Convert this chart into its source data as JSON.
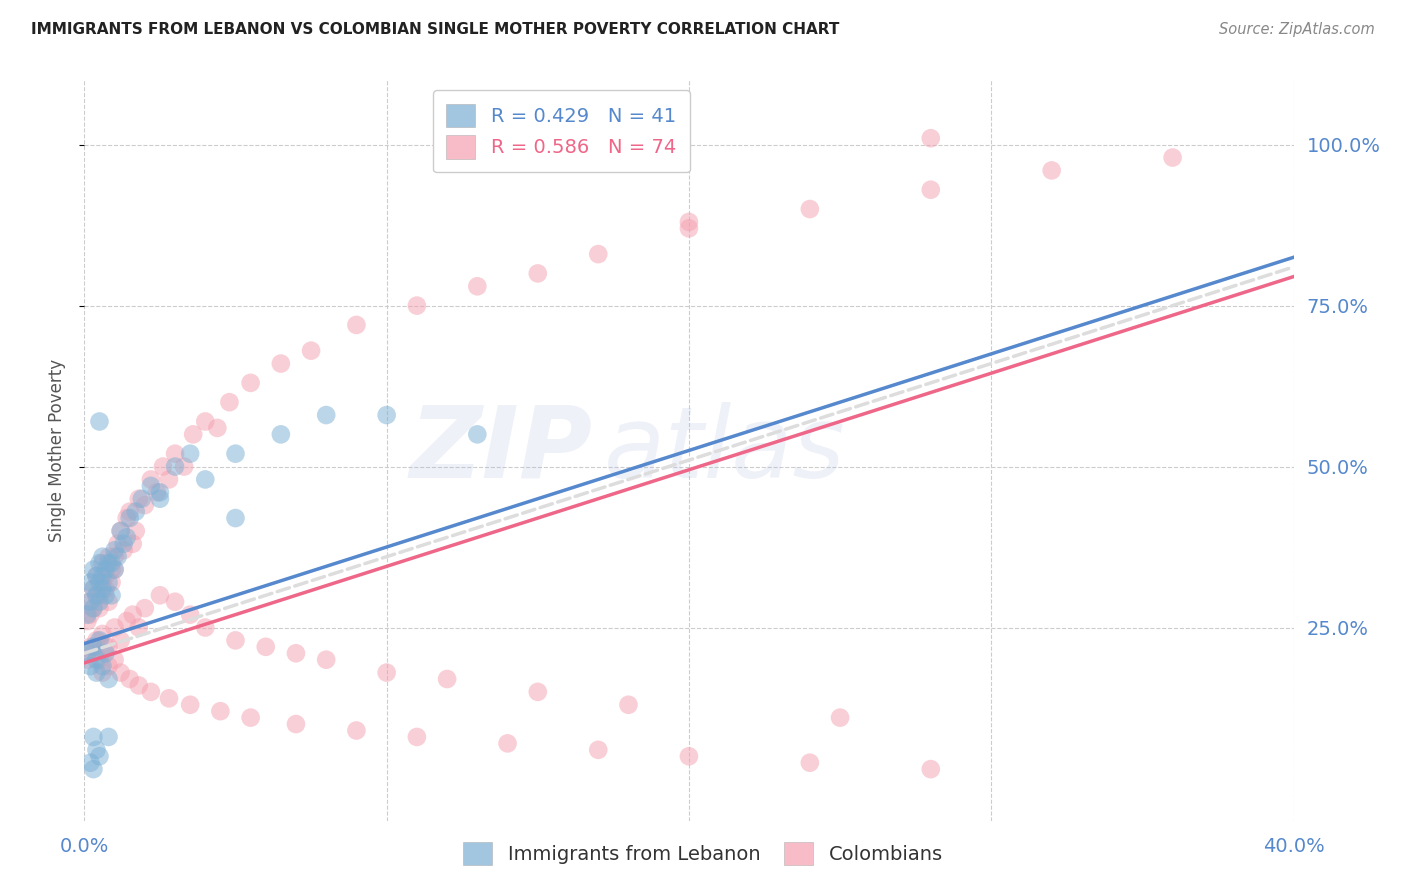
{
  "title": "IMMIGRANTS FROM LEBANON VS COLOMBIAN SINGLE MOTHER POVERTY CORRELATION CHART",
  "source": "Source: ZipAtlas.com",
  "ylabel": "Single Mother Poverty",
  "ytick_labels": [
    "100.0%",
    "75.0%",
    "50.0%",
    "25.0%"
  ],
  "ytick_values": [
    1.0,
    0.75,
    0.5,
    0.25
  ],
  "xlim": [
    0.0,
    0.4
  ],
  "ylim": [
    -0.05,
    1.1
  ],
  "legend1_label": "R = 0.429   N = 41",
  "legend2_label": "R = 0.586   N = 74",
  "color_blue": "#7BAFD4",
  "color_pink": "#F4A0B0",
  "color_blue_line": "#5588CC",
  "color_pink_line": "#EE6688",
  "color_dashed": "#DDDDDD",
  "watermark_zip": "ZIP",
  "watermark_atlas": "atlas",
  "title_color": "#222222",
  "axis_label_color": "#5588CC",
  "legend_r_color_blue": "#5588CC",
  "legend_r_color_pink": "#EE6688",
  "blue_line_x0": 0.0,
  "blue_line_y0": 0.225,
  "blue_line_x1": 0.4,
  "blue_line_y1": 0.825,
  "pink_line_x0": 0.0,
  "pink_line_y0": 0.195,
  "pink_line_x1": 0.4,
  "pink_line_y1": 0.795,
  "blue_x": [
    0.001,
    0.002,
    0.002,
    0.003,
    0.003,
    0.003,
    0.004,
    0.004,
    0.005,
    0.005,
    0.005,
    0.006,
    0.006,
    0.006,
    0.007,
    0.007,
    0.008,
    0.008,
    0.009,
    0.009,
    0.01,
    0.01,
    0.011,
    0.012,
    0.013,
    0.014,
    0.015,
    0.017,
    0.019,
    0.022,
    0.025,
    0.03,
    0.035,
    0.04,
    0.05,
    0.065,
    0.08,
    0.1,
    0.13,
    0.005,
    0.008
  ],
  "blue_y": [
    0.27,
    0.32,
    0.29,
    0.34,
    0.31,
    0.28,
    0.3,
    0.33,
    0.35,
    0.32,
    0.29,
    0.33,
    0.31,
    0.36,
    0.3,
    0.34,
    0.35,
    0.32,
    0.3,
    0.35,
    0.34,
    0.37,
    0.36,
    0.4,
    0.38,
    0.39,
    0.42,
    0.43,
    0.45,
    0.47,
    0.46,
    0.5,
    0.52,
    0.48,
    0.52,
    0.55,
    0.58,
    0.58,
    0.55,
    0.57,
    0.08
  ],
  "blue_x2": [
    0.001,
    0.002,
    0.003,
    0.004,
    0.004,
    0.005,
    0.006,
    0.007,
    0.008,
    0.003,
    0.004,
    0.005,
    0.002,
    0.003,
    0.025,
    0.05
  ],
  "blue_y2": [
    0.21,
    0.19,
    0.22,
    0.2,
    0.18,
    0.23,
    0.19,
    0.21,
    0.17,
    0.08,
    0.06,
    0.05,
    0.04,
    0.03,
    0.45,
    0.42
  ],
  "pink_x": [
    0.001,
    0.002,
    0.002,
    0.003,
    0.003,
    0.004,
    0.004,
    0.005,
    0.005,
    0.006,
    0.006,
    0.007,
    0.007,
    0.008,
    0.008,
    0.009,
    0.009,
    0.01,
    0.01,
    0.011,
    0.012,
    0.013,
    0.014,
    0.015,
    0.016,
    0.017,
    0.018,
    0.02,
    0.022,
    0.024,
    0.026,
    0.028,
    0.03,
    0.033,
    0.036,
    0.04,
    0.044,
    0.048,
    0.055,
    0.065,
    0.075,
    0.09,
    0.11,
    0.13,
    0.15,
    0.17,
    0.2,
    0.24,
    0.28,
    0.32,
    0.36,
    0.28,
    0.2,
    0.006,
    0.008,
    0.01,
    0.012,
    0.014,
    0.016,
    0.018,
    0.02,
    0.025,
    0.03,
    0.035,
    0.04,
    0.05,
    0.06,
    0.07,
    0.08,
    0.1,
    0.12,
    0.15,
    0.18,
    0.25
  ],
  "pink_y": [
    0.26,
    0.29,
    0.27,
    0.31,
    0.28,
    0.3,
    0.33,
    0.3,
    0.28,
    0.32,
    0.35,
    0.31,
    0.33,
    0.36,
    0.29,
    0.34,
    0.32,
    0.36,
    0.34,
    0.38,
    0.4,
    0.37,
    0.42,
    0.43,
    0.38,
    0.4,
    0.45,
    0.44,
    0.48,
    0.46,
    0.5,
    0.48,
    0.52,
    0.5,
    0.55,
    0.57,
    0.56,
    0.6,
    0.63,
    0.66,
    0.68,
    0.72,
    0.75,
    0.78,
    0.8,
    0.83,
    0.87,
    0.9,
    0.93,
    0.96,
    0.98,
    1.01,
    0.88,
    0.24,
    0.22,
    0.25,
    0.23,
    0.26,
    0.27,
    0.25,
    0.28,
    0.3,
    0.29,
    0.27,
    0.25,
    0.23,
    0.22,
    0.21,
    0.2,
    0.18,
    0.17,
    0.15,
    0.13,
    0.11
  ],
  "pink_x2": [
    0.001,
    0.002,
    0.003,
    0.004,
    0.005,
    0.006,
    0.007,
    0.008,
    0.01,
    0.012,
    0.015,
    0.018,
    0.022,
    0.028,
    0.035,
    0.045,
    0.055,
    0.07,
    0.09,
    0.11,
    0.14,
    0.17,
    0.2,
    0.24,
    0.28
  ],
  "pink_y2": [
    0.2,
    0.22,
    0.21,
    0.23,
    0.2,
    0.18,
    0.22,
    0.19,
    0.2,
    0.18,
    0.17,
    0.16,
    0.15,
    0.14,
    0.13,
    0.12,
    0.11,
    0.1,
    0.09,
    0.08,
    0.07,
    0.06,
    0.05,
    0.04,
    0.03
  ]
}
